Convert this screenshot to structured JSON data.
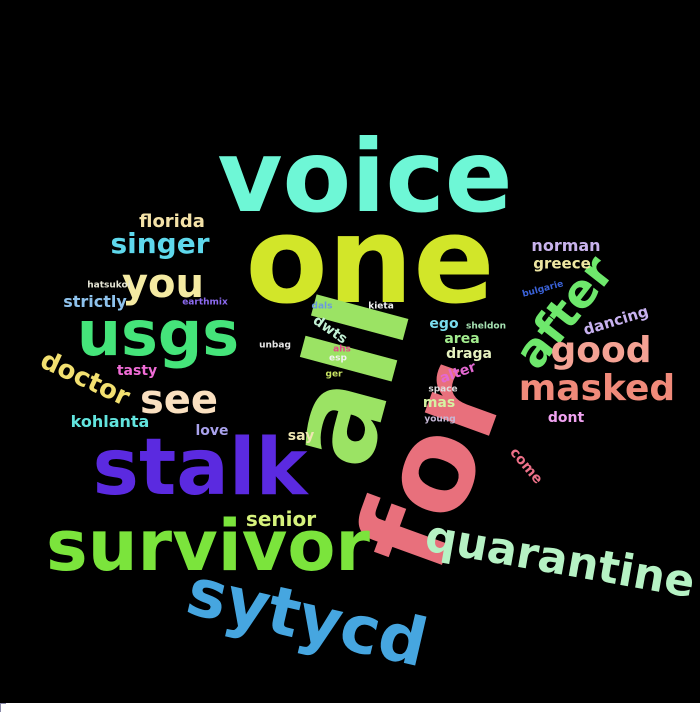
{
  "words": [
    {
      "text": "voice",
      "color": "#6ef7d6"
    },
    {
      "text": "one",
      "color": "#d2e629"
    },
    {
      "text": "all",
      "color": "#9be364"
    },
    {
      "text": "for",
      "color": "#e8707c"
    },
    {
      "text": "stalk",
      "color": "#5b2ae0"
    },
    {
      "text": "survivor",
      "color": "#7be43c"
    },
    {
      "text": "sytycd",
      "color": "#46a6e0"
    },
    {
      "text": "usgs",
      "color": "#45e47a"
    },
    {
      "text": "quarantine",
      "color": "#b6f2c4"
    },
    {
      "text": "after",
      "color": "#6ee86c"
    },
    {
      "text": "masked",
      "color": "#f08a7a"
    },
    {
      "text": "good",
      "color": "#f4a294"
    },
    {
      "text": "you",
      "color": "#f4eaa2"
    },
    {
      "text": "singer",
      "color": "#5ed8ec"
    },
    {
      "text": "see",
      "color": "#fae0c0"
    },
    {
      "text": "doctor",
      "color": "#f2e070"
    },
    {
      "text": "senior",
      "color": "#d6f27c"
    },
    {
      "text": "florida",
      "color": "#f4e2a8"
    },
    {
      "text": "norman",
      "color": "#c8b2ec"
    },
    {
      "text": "greece",
      "color": "#eee6a2"
    },
    {
      "text": "strictly",
      "color": "#8ec2ec"
    },
    {
      "text": "dancing",
      "color": "#c8b2f0"
    },
    {
      "text": "kohlanta",
      "color": "#62e4de"
    },
    {
      "text": "tasty",
      "color": "#f06cd6"
    },
    {
      "text": "love",
      "color": "#a9a2ec"
    },
    {
      "text": "say",
      "color": "#eee6b2"
    },
    {
      "text": "dwts",
      "color": "#c2f0d4"
    },
    {
      "text": "ego",
      "color": "#7adcee"
    },
    {
      "text": "area",
      "color": "#a2ec8e"
    },
    {
      "text": "draga",
      "color": "#e6f2c0"
    },
    {
      "text": "alter",
      "color": "#e468d2"
    },
    {
      "text": "mas",
      "color": "#d6f2a2"
    },
    {
      "text": "dont",
      "color": "#f0a2f0"
    },
    {
      "text": "come",
      "color": "#ec7088"
    },
    {
      "text": "bulgarie",
      "color": "#3a62d8"
    },
    {
      "text": "sheldon",
      "color": "#a6e2b2"
    },
    {
      "text": "hatsukoi",
      "color": "#e6e6d6"
    },
    {
      "text": "earthmix",
      "color": "#8c6af0"
    },
    {
      "text": "dals",
      "color": "#6a9ae0"
    },
    {
      "text": "kieta",
      "color": "#f2f2f2"
    },
    {
      "text": "unbag",
      "color": "#e6e6e6"
    },
    {
      "text": "ahs",
      "color": "#e44a88"
    },
    {
      "text": "esp",
      "color": "#f2f2f2"
    },
    {
      "text": "ger",
      "color": "#c6e262"
    },
    {
      "text": "space",
      "color": "#dedede"
    },
    {
      "text": "young",
      "color": "#c6b8d6"
    }
  ]
}
